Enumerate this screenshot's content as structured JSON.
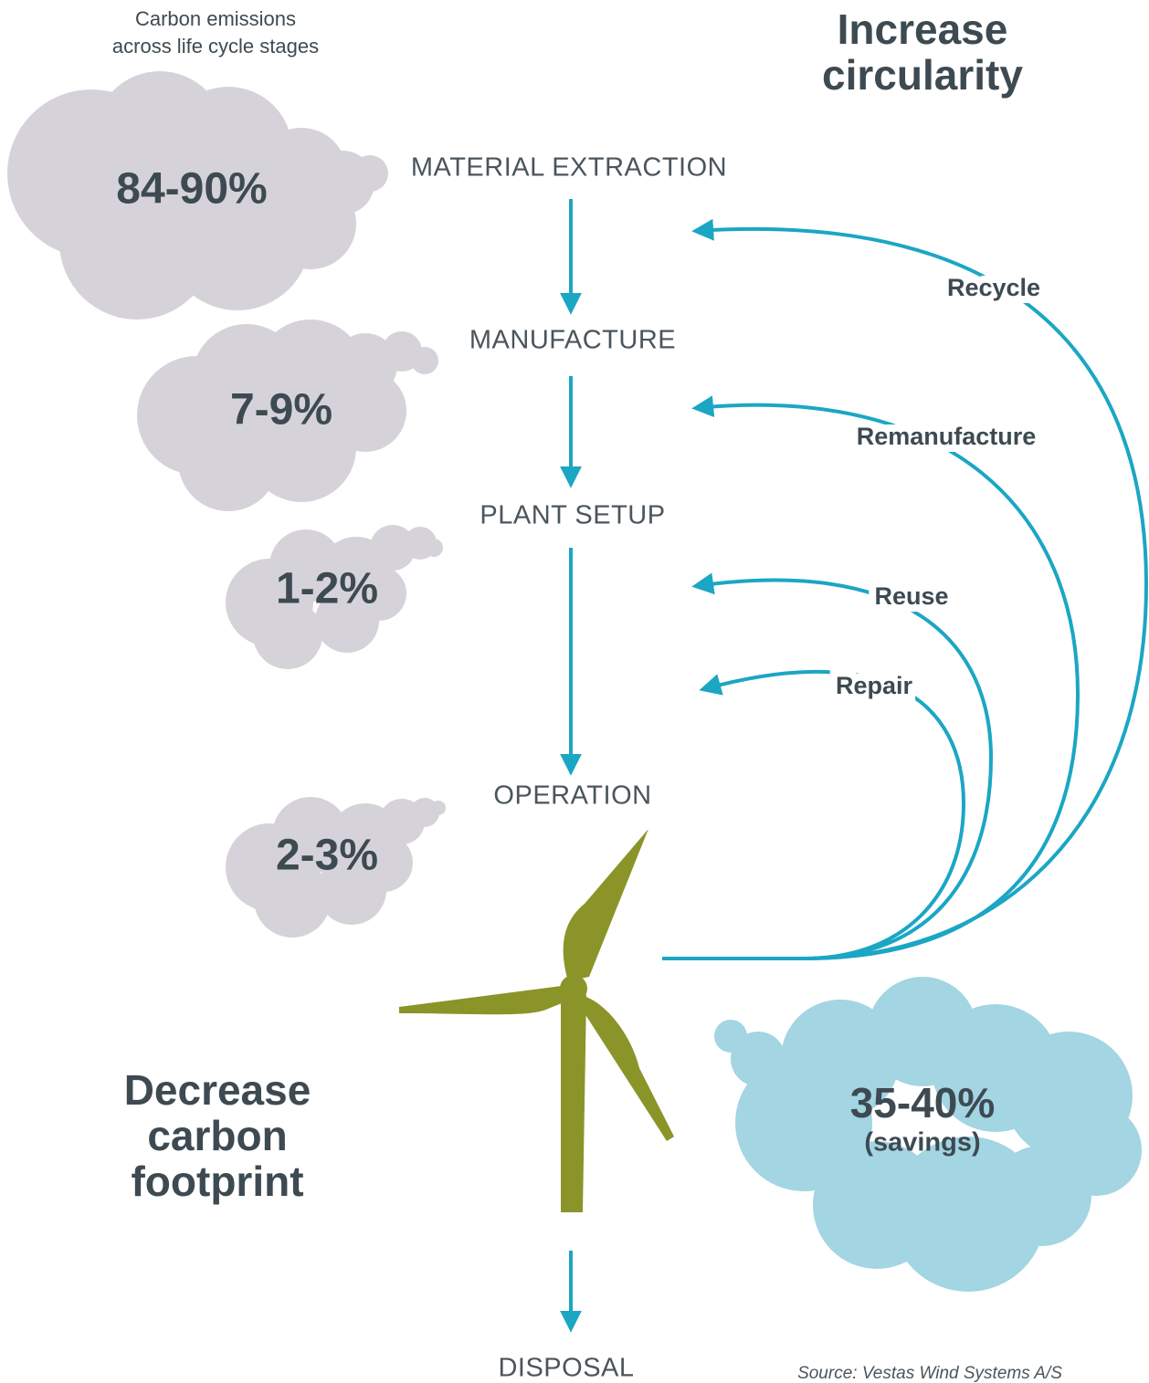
{
  "caption": [
    "Carbon emissions",
    "across life cycle stages"
  ],
  "title": [
    "Increase",
    "circularity"
  ],
  "stages": [
    {
      "label": "MATERIAL EXTRACTION",
      "emissions": "84-90%"
    },
    {
      "label": "MANUFACTURE",
      "emissions": "7-9%"
    },
    {
      "label": "PLANT SETUP",
      "emissions": "1-2%"
    },
    {
      "label": "OPERATION",
      "emissions": "2-3%"
    },
    {
      "label": "DISPOSAL"
    }
  ],
  "loops": [
    "Recycle",
    "Remanufacture",
    "Reuse",
    "Repair"
  ],
  "savings": {
    "value": "35-40%",
    "note": "(savings)"
  },
  "goal": [
    "Decrease",
    "carbon",
    "footprint"
  ],
  "source": "Source: Vestas Wind Systems A/S"
}
